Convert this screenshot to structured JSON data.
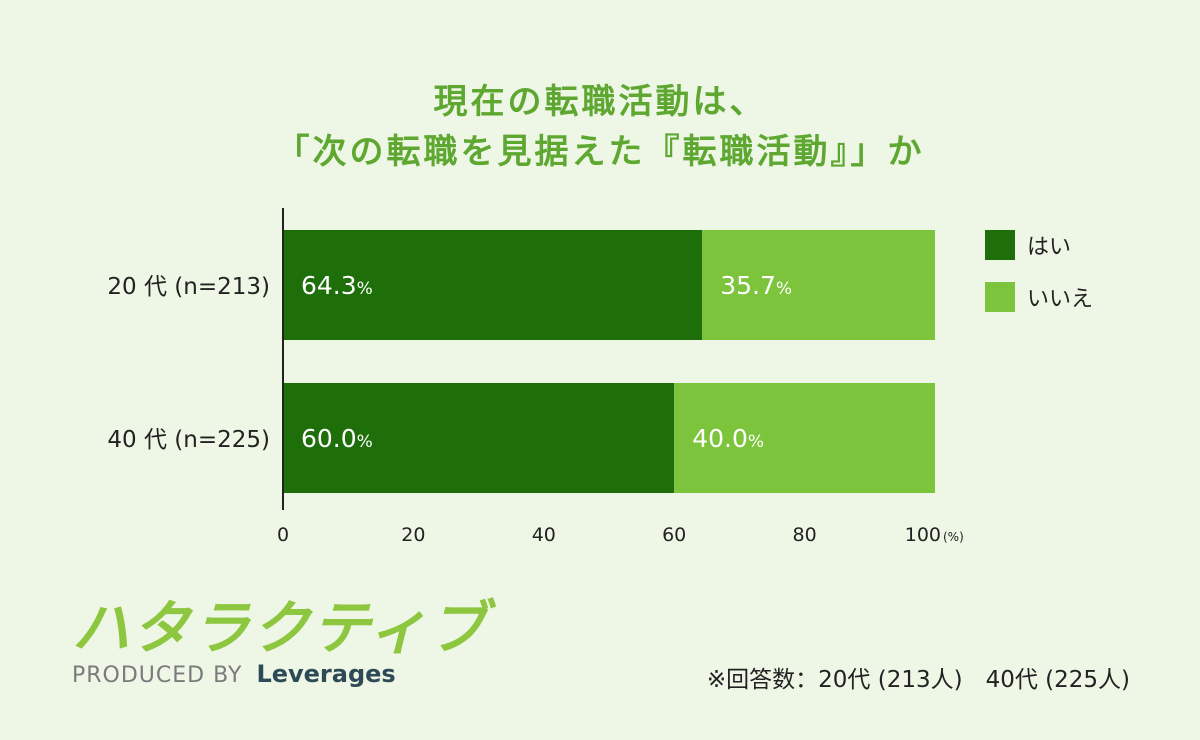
{
  "title_line1": "現在の転職活動は、",
  "title_line2": "「次の転職を見据えた『転職活動』」か",
  "chart_data": {
    "type": "bar",
    "orientation": "horizontal",
    "stacked": true,
    "categories": [
      "20 代 (n=213)",
      "40 代 (n=225)"
    ],
    "series": [
      {
        "name": "はい",
        "values": [
          64.3,
          60.0
        ],
        "color": "#1e6e0a"
      },
      {
        "name": "いいえ",
        "values": [
          35.7,
          40.0
        ],
        "color": "#7cc43b"
      }
    ],
    "xlim": [
      0,
      100
    ],
    "xticks": [
      0,
      20,
      40,
      60,
      80,
      100
    ],
    "x_unit": "(%)",
    "value_suffix": "%",
    "legend_position": "top-right",
    "grid": false
  },
  "legend": {
    "yes": "はい",
    "no": "いいえ"
  },
  "logo_text": "ハタラクティブ",
  "produced_by": "PRODUCED BY",
  "brand": "Leverages",
  "footnote": "※回答数：20代 (213人)　40代 (225人)"
}
